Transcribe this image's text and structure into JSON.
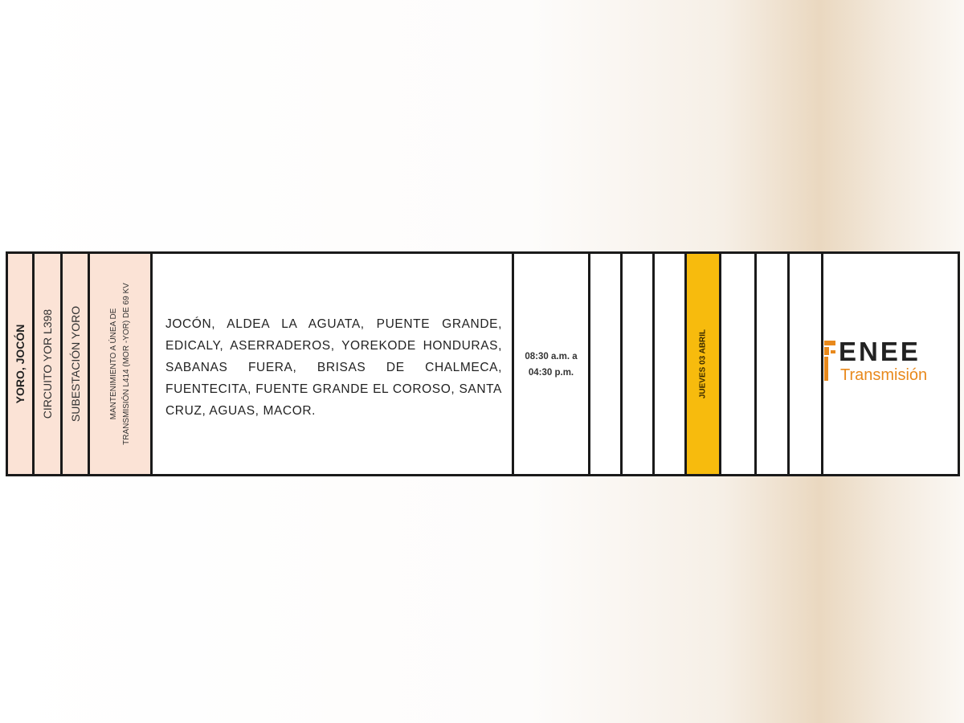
{
  "row": {
    "location": "YORO, JOCÓN",
    "circuit": "CIRCUITO YOR L398",
    "substation": "SUBESTACIÓN YORO",
    "work": [
      "MANTENIMIENTO A ÚNEA DE",
      "TRANSMISIÓN L414 (MOR -YOR) DE 69 KV"
    ],
    "affected_areas": "JOCÓN, ALDEA LA AGUATA, PUENTE GRANDE, EDICALY, ASERRADEROS, YOREKODE HONDURAS, SABANAS FUERA, BRISAS DE CHALMECA, FUENTECITA, FUENTE GRANDE EL COROSO, SANTA CRUZ, AGUAS, MACOR.",
    "time_start": "08:30 a.m. a",
    "time_end": "04:30 p.m.",
    "day": "JUEVES 03 ABRIL"
  },
  "logo": {
    "name": "ENEE",
    "subtitle": "Transmisión"
  },
  "colors": {
    "pink": "#fbe3d6",
    "highlight": "#f7bb0d",
    "logo_orange": "#e8891c"
  }
}
